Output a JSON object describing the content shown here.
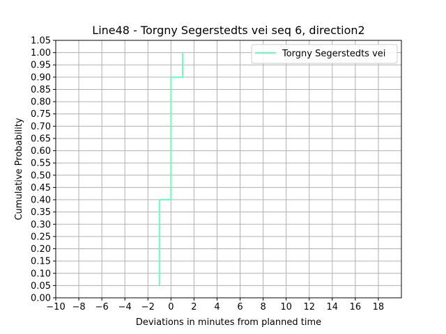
{
  "chart_data": {
    "type": "line",
    "title": "Line48 - Torgny Segerstedts vei seq 6, direction2",
    "xlabel": "Deviations in minutes from planned time",
    "ylabel": "Cumulative Probability",
    "xlim": [
      -10,
      20
    ],
    "ylim": [
      0,
      1.05
    ],
    "x_ticks": [
      -10,
      -8,
      -6,
      -4,
      -2,
      0,
      2,
      4,
      6,
      8,
      10,
      12,
      14,
      16,
      18
    ],
    "x_tick_labels": [
      "−10",
      "−8",
      "−6",
      "−4",
      "−2",
      "0",
      "2",
      "4",
      "6",
      "8",
      "10",
      "12",
      "14",
      "16",
      "18"
    ],
    "y_ticks": [
      0,
      0.05,
      0.1,
      0.15,
      0.2,
      0.25,
      0.3,
      0.35,
      0.4,
      0.45,
      0.5,
      0.55,
      0.6,
      0.65,
      0.7,
      0.75,
      0.8,
      0.85,
      0.9,
      0.95,
      1.0,
      1.05
    ],
    "y_tick_labels": [
      "0.00",
      "0.05",
      "0.10",
      "0.15",
      "0.20",
      "0.25",
      "0.30",
      "0.35",
      "0.40",
      "0.45",
      "0.50",
      "0.55",
      "0.60",
      "0.65",
      "0.70",
      "0.75",
      "0.80",
      "0.85",
      "0.90",
      "0.95",
      "1.00",
      "1.05"
    ],
    "grid": true,
    "legend_position": "upper right",
    "series": [
      {
        "name": "Torgny Segerstedts vei",
        "color": "#66ffbb",
        "step": true,
        "x": [
          -1,
          -1,
          0,
          0,
          1,
          1
        ],
        "y": [
          0.05,
          0.4,
          0.4,
          0.9,
          0.9,
          1.0
        ]
      }
    ]
  }
}
